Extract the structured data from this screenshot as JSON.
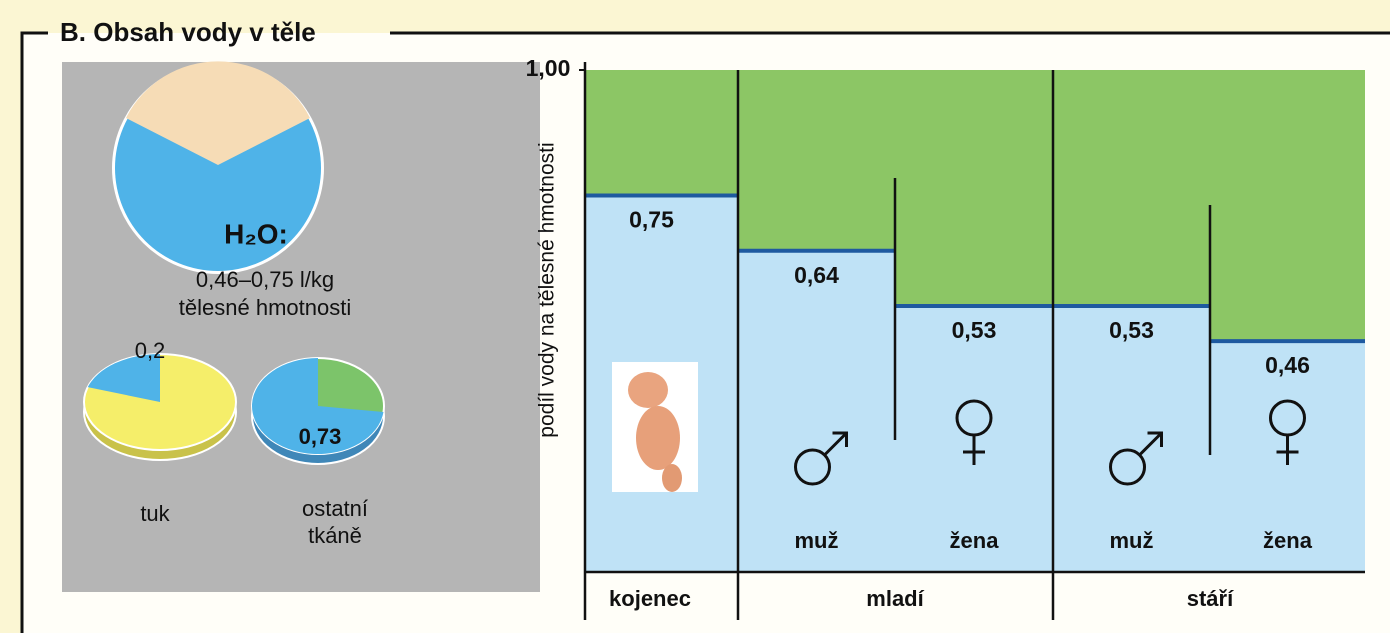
{
  "header": {
    "title": "B. Obsah vody v těle"
  },
  "body_water": {
    "formula": "H₂O:",
    "range": "0,46–0,75 l/kg",
    "unit": "tělesné hmotnosti"
  },
  "tissues": [
    {
      "name_lines": [
        "tuk"
      ],
      "value": 0.2,
      "value_label": "0,2"
    },
    {
      "name_lines": [
        "ostatní",
        "tkáně"
      ],
      "value": 0.73,
      "value_label": "0,73"
    }
  ],
  "chart": {
    "ylabel": "podíl vody na tělesné hmotnosti",
    "yticks": [
      {
        "value": 1,
        "label": "1,00"
      }
    ],
    "columns": [
      {
        "value": 0.75,
        "label": "0,75"
      },
      {
        "sex": "muž",
        "value": 0.64,
        "label": "0,64"
      },
      {
        "sex": "žena",
        "value": 0.53,
        "label": "0,53"
      },
      {
        "sex": "muž",
        "value": 0.53,
        "label": "0,53"
      },
      {
        "sex": "žena",
        "value": 0.46,
        "label": "0,46"
      }
    ],
    "groups": [
      "kojenec",
      "mladí",
      "stáří"
    ]
  }
}
